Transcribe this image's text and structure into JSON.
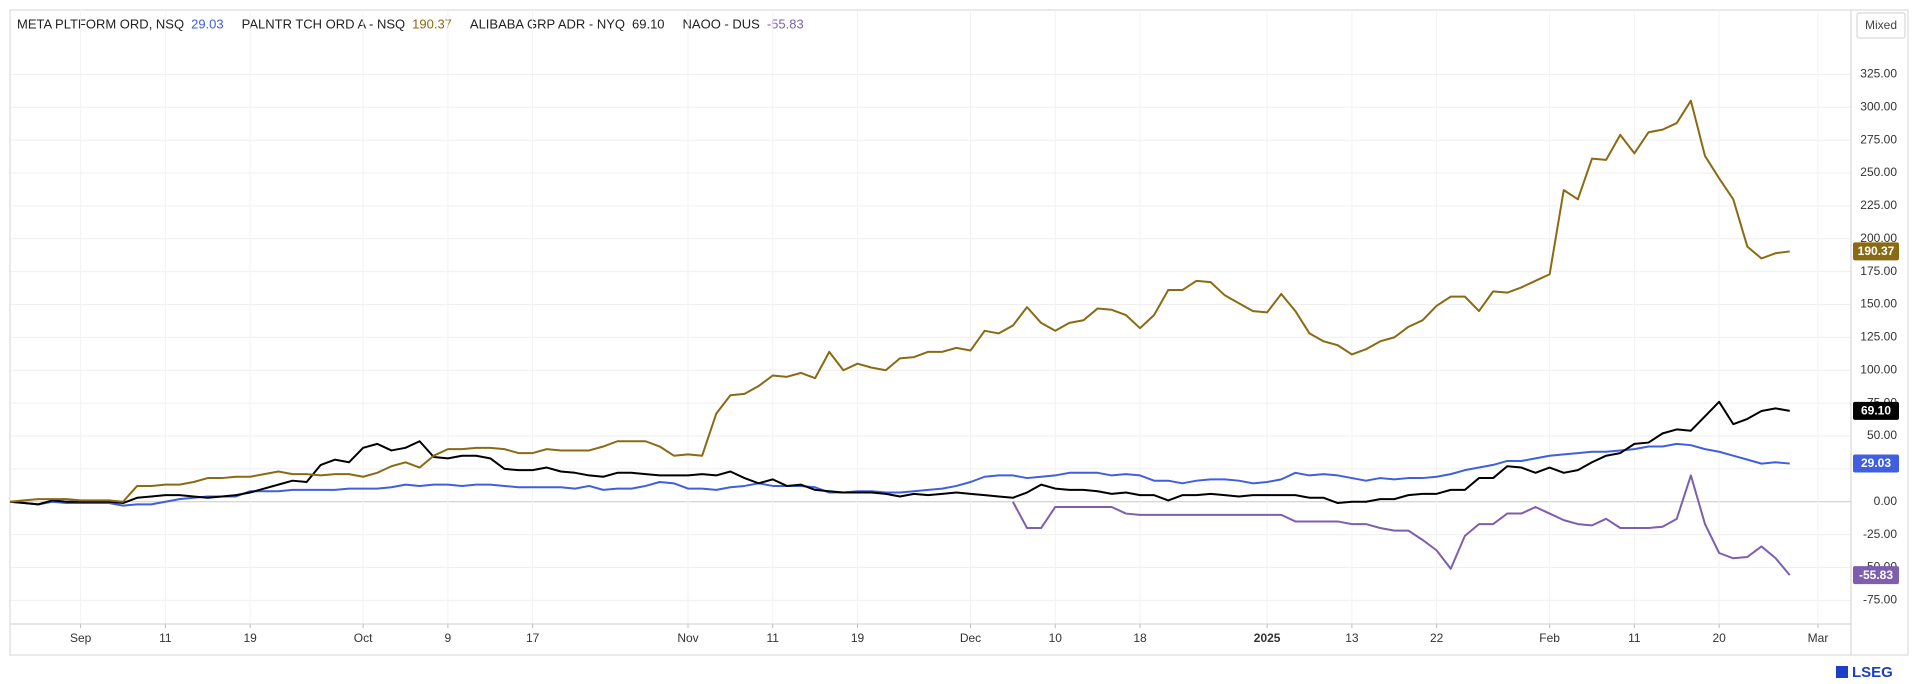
{
  "chart_data": {
    "type": "line",
    "scale_mode": "Mixed",
    "logo": "LSEG",
    "categories": [
      null,
      null,
      null,
      null,
      null,
      "Sep",
      null,
      null,
      null,
      null,
      null,
      "11",
      null,
      null,
      null,
      null,
      null,
      "19",
      null,
      null,
      null,
      null,
      null,
      null,
      null,
      "Oct",
      null,
      null,
      null,
      null,
      null,
      "9",
      null,
      null,
      null,
      null,
      null,
      "17",
      null,
      null,
      null,
      null,
      null,
      null,
      null,
      null,
      null,
      null,
      "Nov",
      null,
      null,
      null,
      null,
      null,
      "11",
      null,
      null,
      null,
      null,
      null,
      "19",
      null,
      null,
      null,
      null,
      null,
      null,
      null,
      "Dec",
      null,
      null,
      null,
      null,
      null,
      "10",
      null,
      null,
      null,
      null,
      null,
      "18",
      null,
      null,
      null,
      null,
      null,
      null,
      null,
      null,
      "2025",
      null,
      null,
      null,
      null,
      null,
      "13",
      null,
      null,
      null,
      null,
      null,
      "22",
      null,
      null,
      null,
      null,
      null,
      null,
      null,
      "Feb",
      null,
      null,
      null,
      null,
      null,
      "11",
      null,
      null,
      null,
      null,
      null,
      "20",
      null,
      null,
      null,
      null,
      null,
      null,
      "Mar"
    ],
    "ylim": [
      -93,
      374
    ],
    "yticks": [
      {
        "value": -75,
        "label": "-75.00"
      },
      {
        "value": -50,
        "label": "-50.00"
      },
      {
        "value": -25,
        "label": "-25.00"
      },
      {
        "value": 0,
        "label": "0.00"
      },
      {
        "value": 25,
        "label": "25.00"
      },
      {
        "value": 50,
        "label": "50.00"
      },
      {
        "value": 75,
        "label": "75.00"
      },
      {
        "value": 100,
        "label": "100.00"
      },
      {
        "value": 125,
        "label": "125.00"
      },
      {
        "value": 150,
        "label": "150.00"
      },
      {
        "value": 175,
        "label": "175.00"
      },
      {
        "value": 200,
        "label": "200.00"
      },
      {
        "value": 225,
        "label": "225.00"
      },
      {
        "value": 250,
        "label": "250.00"
      },
      {
        "value": 275,
        "label": "275.00"
      },
      {
        "value": 300,
        "label": "300.00"
      },
      {
        "value": 325,
        "label": "325.00"
      }
    ],
    "grid": true,
    "series": [
      {
        "name": "META PLTFORM ORD, NSQ",
        "color": "#3f5fe0",
        "values": [
          0,
          -1,
          -2,
          0,
          -1,
          -1,
          -1,
          -1,
          -3,
          -2,
          -2,
          0,
          2,
          3,
          4,
          4,
          4,
          8,
          8,
          8,
          9,
          9,
          9,
          9,
          10,
          10,
          10,
          11,
          13,
          12,
          13,
          13,
          12,
          13,
          13,
          12,
          11,
          11,
          11,
          11,
          10,
          12,
          9,
          10,
          10,
          12,
          15,
          14,
          10,
          10,
          9,
          11,
          12,
          14,
          12,
          12,
          12,
          11,
          7,
          7,
          8,
          8,
          7,
          7,
          8,
          9,
          10,
          12,
          15,
          19,
          20,
          20,
          18,
          19,
          20,
          22,
          22,
          22,
          20,
          21,
          20,
          16,
          16,
          14,
          16,
          17,
          17,
          16,
          14,
          15,
          17,
          22,
          20,
          21,
          20,
          18,
          16,
          18,
          17,
          18,
          18,
          19,
          21,
          24,
          26,
          28,
          31,
          31,
          33,
          35,
          36,
          37,
          38,
          38,
          39,
          40,
          42,
          42,
          44,
          43,
          40,
          38,
          35,
          32,
          29,
          30,
          29.03,
          null,
          null
        ],
        "value_labels": [
          null,
          null,
          null,
          null,
          null,
          null,
          null,
          null,
          null,
          null,
          null,
          null,
          null,
          null,
          null,
          null,
          null,
          null,
          null,
          null,
          null,
          null,
          null,
          null,
          null,
          null,
          null,
          null,
          null,
          null,
          null,
          null,
          null,
          null,
          null,
          null,
          null,
          null,
          null,
          null,
          null,
          null,
          null,
          null,
          null,
          null,
          null,
          null,
          null,
          null,
          null,
          null,
          null,
          null,
          null,
          null,
          null,
          null,
          null,
          null,
          null,
          null,
          null,
          null,
          null,
          null,
          null,
          null,
          null,
          null,
          null,
          null,
          null,
          null,
          null,
          null,
          null,
          null,
          null,
          null,
          null,
          null,
          null,
          null,
          null,
          null,
          null,
          null,
          null,
          null,
          null,
          null,
          null,
          null,
          null,
          null,
          null,
          null,
          null,
          null,
          null,
          null,
          null,
          null,
          null,
          null,
          null,
          null,
          null,
          null,
          null,
          null,
          null,
          null,
          null,
          null,
          null,
          null,
          null,
          null,
          null,
          null,
          null,
          null,
          null,
          null,
          "29.03",
          null,
          null
        ]
      },
      {
        "name": "PALNTR TCH ORD A - NSQ",
        "color": "#8a6a12",
        "values": [
          0,
          1,
          2,
          2,
          2,
          1,
          1,
          1,
          0,
          12,
          12,
          13,
          13,
          15,
          18,
          18,
          19,
          19,
          21,
          23,
          21,
          21,
          20,
          21,
          21,
          19,
          22,
          27,
          30,
          26,
          35,
          40,
          40,
          41,
          41,
          40,
          37,
          37,
          40,
          39,
          39,
          39,
          42,
          46,
          46,
          46,
          42,
          35,
          36,
          35,
          67,
          81,
          82,
          88,
          96,
          95,
          98,
          94,
          114,
          100,
          105,
          102,
          100,
          109,
          110,
          114,
          114,
          117,
          115,
          130,
          128,
          134,
          148,
          136,
          130,
          136,
          138,
          147,
          146,
          142,
          132,
          142,
          161,
          161,
          168,
          167,
          157,
          151,
          145,
          144,
          158,
          145,
          128,
          122,
          119,
          112,
          116,
          122,
          125,
          133,
          138,
          149,
          156,
          156,
          145,
          160,
          159,
          163,
          168,
          173,
          237,
          230,
          261,
          260,
          279,
          265,
          281,
          283,
          288,
          305,
          263,
          246,
          230,
          194,
          185,
          189,
          190.37,
          null,
          null
        ],
        "value_labels": [
          null,
          null,
          null,
          null,
          null,
          null,
          null,
          null,
          null,
          null,
          null,
          null,
          null,
          null,
          null,
          null,
          null,
          null,
          null,
          null,
          null,
          null,
          null,
          null,
          null,
          null,
          null,
          null,
          null,
          null,
          null,
          null,
          null,
          null,
          null,
          null,
          null,
          null,
          null,
          null,
          null,
          null,
          null,
          null,
          null,
          null,
          null,
          null,
          null,
          null,
          null,
          null,
          null,
          null,
          null,
          null,
          null,
          null,
          null,
          null,
          null,
          null,
          null,
          null,
          null,
          null,
          null,
          null,
          null,
          null,
          null,
          null,
          null,
          null,
          null,
          null,
          null,
          null,
          null,
          null,
          null,
          null,
          null,
          null,
          null,
          null,
          null,
          null,
          null,
          null,
          null,
          null,
          null,
          null,
          null,
          null,
          null,
          null,
          null,
          null,
          null,
          null,
          null,
          null,
          null,
          null,
          null,
          null,
          null,
          null,
          null,
          null,
          null,
          null,
          null,
          null,
          null,
          null,
          null,
          null,
          null,
          null,
          null,
          null,
          null,
          null,
          "190.37",
          null,
          null
        ]
      },
      {
        "name": "ALIBABA GRP ADR - NYQ",
        "color": "#000000",
        "values": [
          0,
          -1,
          -2,
          1,
          0,
          0,
          0,
          0,
          -1,
          3,
          4,
          5,
          5,
          4,
          3,
          4,
          5,
          7,
          10,
          13,
          16,
          15,
          28,
          32,
          30,
          41,
          44,
          39,
          41,
          46,
          34,
          33,
          35,
          35,
          33,
          25,
          24,
          24,
          26,
          23,
          22,
          20,
          19,
          22,
          22,
          21,
          20,
          20,
          20,
          21,
          20,
          23,
          18,
          14,
          17,
          12,
          13,
          9,
          8,
          7,
          7,
          7,
          6,
          4,
          6,
          5,
          6,
          7,
          6,
          5,
          4,
          3,
          7,
          13,
          10,
          9,
          9,
          8,
          6,
          7,
          5,
          5,
          1,
          5,
          5,
          6,
          5,
          4,
          5,
          5,
          5,
          5,
          3,
          3,
          -1,
          0,
          0,
          2,
          2,
          5,
          6,
          6,
          9,
          9,
          18,
          18,
          27,
          26,
          22,
          26,
          22,
          24,
          30,
          35,
          37,
          44,
          45,
          52,
          55,
          54,
          65,
          76,
          59,
          63,
          69,
          71,
          69.1,
          null,
          null
        ],
        "value_labels": [
          null,
          null,
          null,
          null,
          null,
          null,
          null,
          null,
          null,
          null,
          null,
          null,
          null,
          null,
          null,
          null,
          null,
          null,
          null,
          null,
          null,
          null,
          null,
          null,
          null,
          null,
          null,
          null,
          null,
          null,
          null,
          null,
          null,
          null,
          null,
          null,
          null,
          null,
          null,
          null,
          null,
          null,
          null,
          null,
          null,
          null,
          null,
          null,
          null,
          null,
          null,
          null,
          null,
          null,
          null,
          null,
          null,
          null,
          null,
          null,
          null,
          null,
          null,
          null,
          null,
          null,
          null,
          null,
          null,
          null,
          null,
          null,
          null,
          null,
          null,
          null,
          null,
          null,
          null,
          null,
          null,
          null,
          null,
          null,
          null,
          null,
          null,
          null,
          null,
          null,
          null,
          null,
          null,
          null,
          null,
          null,
          null,
          null,
          null,
          null,
          null,
          null,
          null,
          null,
          null,
          null,
          null,
          null,
          null,
          null,
          null,
          null,
          null,
          null,
          null,
          null,
          null,
          null,
          null,
          null,
          null,
          null,
          null,
          null,
          null,
          null,
          "69.10",
          null,
          null
        ]
      },
      {
        "name": "NAOO - DUS",
        "color": "#7d5fae",
        "values": [
          null,
          null,
          null,
          null,
          null,
          null,
          null,
          null,
          null,
          null,
          null,
          null,
          null,
          null,
          null,
          null,
          null,
          null,
          null,
          null,
          null,
          null,
          null,
          null,
          null,
          null,
          null,
          null,
          null,
          null,
          null,
          null,
          null,
          null,
          null,
          null,
          null,
          null,
          null,
          null,
          null,
          null,
          null,
          null,
          null,
          null,
          null,
          null,
          null,
          null,
          null,
          null,
          null,
          null,
          null,
          null,
          null,
          null,
          null,
          null,
          null,
          null,
          null,
          null,
          null,
          null,
          null,
          null,
          null,
          null,
          null,
          0,
          -20,
          -20,
          -4,
          -4,
          -4,
          -4,
          -4,
          -9,
          -10,
          -10,
          -10,
          -10,
          -10,
          -10,
          -10,
          -10,
          -10,
          -10,
          -10,
          -15,
          -15,
          -15,
          -15,
          -17,
          -17,
          -20,
          -22,
          -22,
          -29,
          -37,
          -51,
          -26,
          -17,
          -17,
          -9,
          -9,
          -4,
          -9,
          -14,
          -17,
          -18,
          -13,
          -20,
          -20,
          -20,
          -19,
          -13,
          20,
          -17,
          -39,
          -43,
          -42,
          -34,
          -43,
          -55.83,
          null,
          null
        ],
        "value_labels": [
          null,
          null,
          null,
          null,
          null,
          null,
          null,
          null,
          null,
          null,
          null,
          null,
          null,
          null,
          null,
          null,
          null,
          null,
          null,
          null,
          null,
          null,
          null,
          null,
          null,
          null,
          null,
          null,
          null,
          null,
          null,
          null,
          null,
          null,
          null,
          null,
          null,
          null,
          null,
          null,
          null,
          null,
          null,
          null,
          null,
          null,
          null,
          null,
          null,
          null,
          null,
          null,
          null,
          null,
          null,
          null,
          null,
          null,
          null,
          null,
          null,
          null,
          null,
          null,
          null,
          null,
          null,
          null,
          null,
          null,
          null,
          null,
          null,
          null,
          null,
          null,
          null,
          null,
          null,
          null,
          null,
          null,
          null,
          null,
          null,
          null,
          null,
          null,
          null,
          null,
          null,
          null,
          null,
          null,
          null,
          null,
          null,
          null,
          null,
          null,
          null,
          null,
          null,
          null,
          null,
          null,
          null,
          null,
          null,
          null,
          null,
          null,
          null,
          null,
          null,
          null,
          null,
          null,
          null,
          null,
          null,
          null,
          null,
          null,
          null,
          null,
          "-55.83",
          null,
          null
        ]
      }
    ]
  }
}
